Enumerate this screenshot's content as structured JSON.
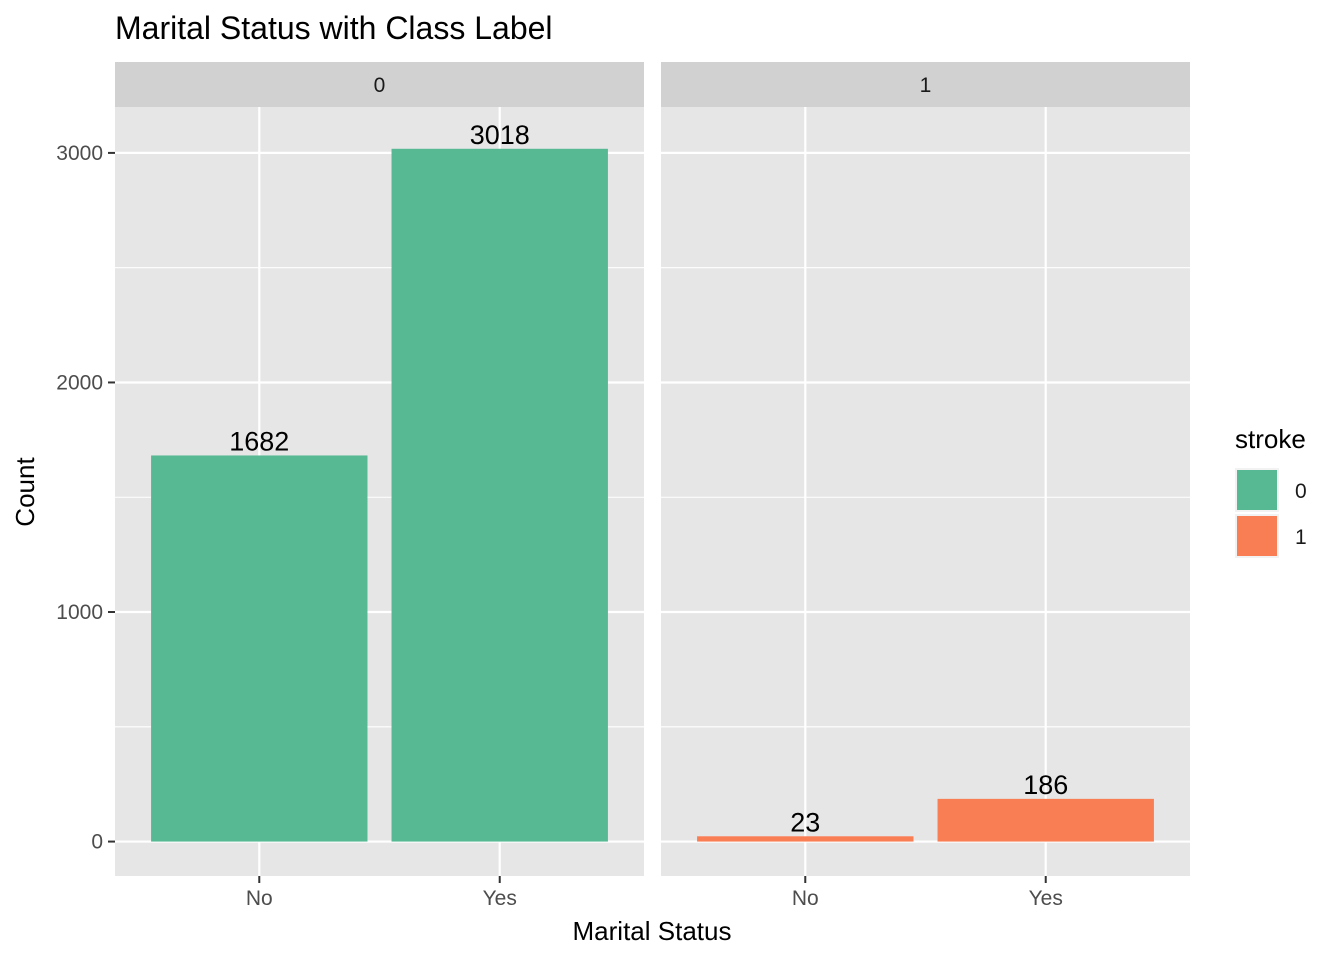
{
  "chart_data": {
    "type": "bar",
    "title": "Marital Status with Class Label",
    "xlabel": "Marital Status",
    "ylabel": "Count",
    "categories": [
      "No",
      "Yes"
    ],
    "ylim": [
      -150,
      3200
    ],
    "yticks": [
      0,
      1000,
      2000,
      3000
    ],
    "facets": [
      {
        "label": "0",
        "stroke": "0",
        "values": [
          1682,
          3018
        ]
      },
      {
        "label": "1",
        "stroke": "1",
        "values": [
          23,
          186
        ]
      }
    ],
    "legend": {
      "title": "stroke",
      "placement": "right",
      "items": [
        {
          "label": "0",
          "color": "#56B994"
        },
        {
          "label": "1",
          "color": "#FA7E53"
        }
      ]
    },
    "grid": true
  }
}
